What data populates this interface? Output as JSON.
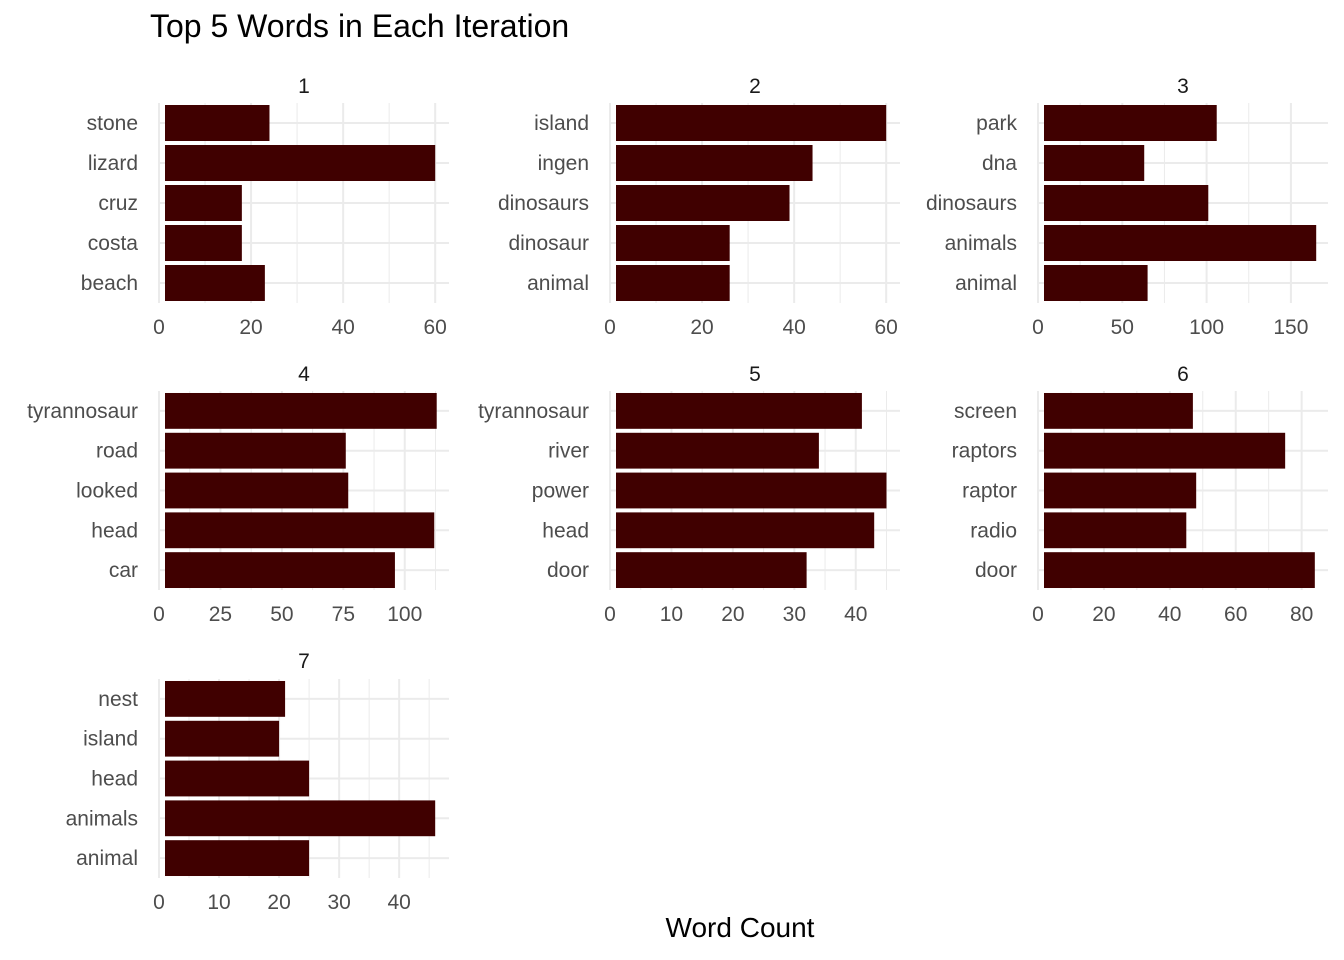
{
  "chart_data": {
    "type": "bar",
    "orientation": "horizontal",
    "title": "Top 5 Words in Each Iteration",
    "xlabel": "Word Count",
    "ylabel": "",
    "grid": true,
    "bar_color": "#400000",
    "grid_color": "#ebebeb",
    "panels": [
      {
        "label": "1",
        "categories": [
          "stone",
          "lizard",
          "cruz",
          "costa",
          "beach"
        ],
        "values": [
          24,
          60,
          18,
          18,
          23
        ],
        "xlim": [
          0,
          63
        ],
        "ticks": [
          0,
          20,
          40,
          60
        ]
      },
      {
        "label": "2",
        "categories": [
          "island",
          "ingen",
          "dinosaurs",
          "dinosaur",
          "animal"
        ],
        "values": [
          60,
          44,
          39,
          26,
          26
        ],
        "xlim": [
          0,
          63
        ],
        "ticks": [
          0,
          20,
          40,
          60
        ]
      },
      {
        "label": "3",
        "categories": [
          "park",
          "dna",
          "dinosaurs",
          "animals",
          "animal"
        ],
        "values": [
          106,
          63,
          101,
          165,
          65
        ],
        "xlim": [
          0,
          172
        ],
        "ticks": [
          0,
          50,
          100,
          150
        ]
      },
      {
        "label": "4",
        "categories": [
          "tyrannosaur",
          "road",
          "looked",
          "head",
          "car"
        ],
        "values": [
          113,
          76,
          77,
          112,
          96
        ],
        "xlim": [
          0,
          118
        ],
        "ticks": [
          0,
          25,
          50,
          75,
          100
        ]
      },
      {
        "label": "5",
        "categories": [
          "tyrannosaur",
          "river",
          "power",
          "head",
          "door"
        ],
        "values": [
          41,
          34,
          45,
          43,
          32
        ],
        "xlim": [
          0,
          47.2
        ],
        "ticks": [
          0,
          10,
          20,
          30,
          40
        ]
      },
      {
        "label": "6",
        "categories": [
          "screen",
          "raptors",
          "raptor",
          "radio",
          "door"
        ],
        "values": [
          47,
          75,
          48,
          45,
          84
        ],
        "xlim": [
          0,
          88
        ],
        "ticks": [
          0,
          20,
          40,
          60,
          80
        ]
      },
      {
        "label": "7",
        "categories": [
          "nest",
          "island",
          "head",
          "animals",
          "animal"
        ],
        "values": [
          21,
          20,
          25,
          46,
          25
        ],
        "xlim": [
          0,
          48.3
        ],
        "ticks": [
          0,
          10,
          20,
          30,
          40
        ]
      }
    ]
  }
}
